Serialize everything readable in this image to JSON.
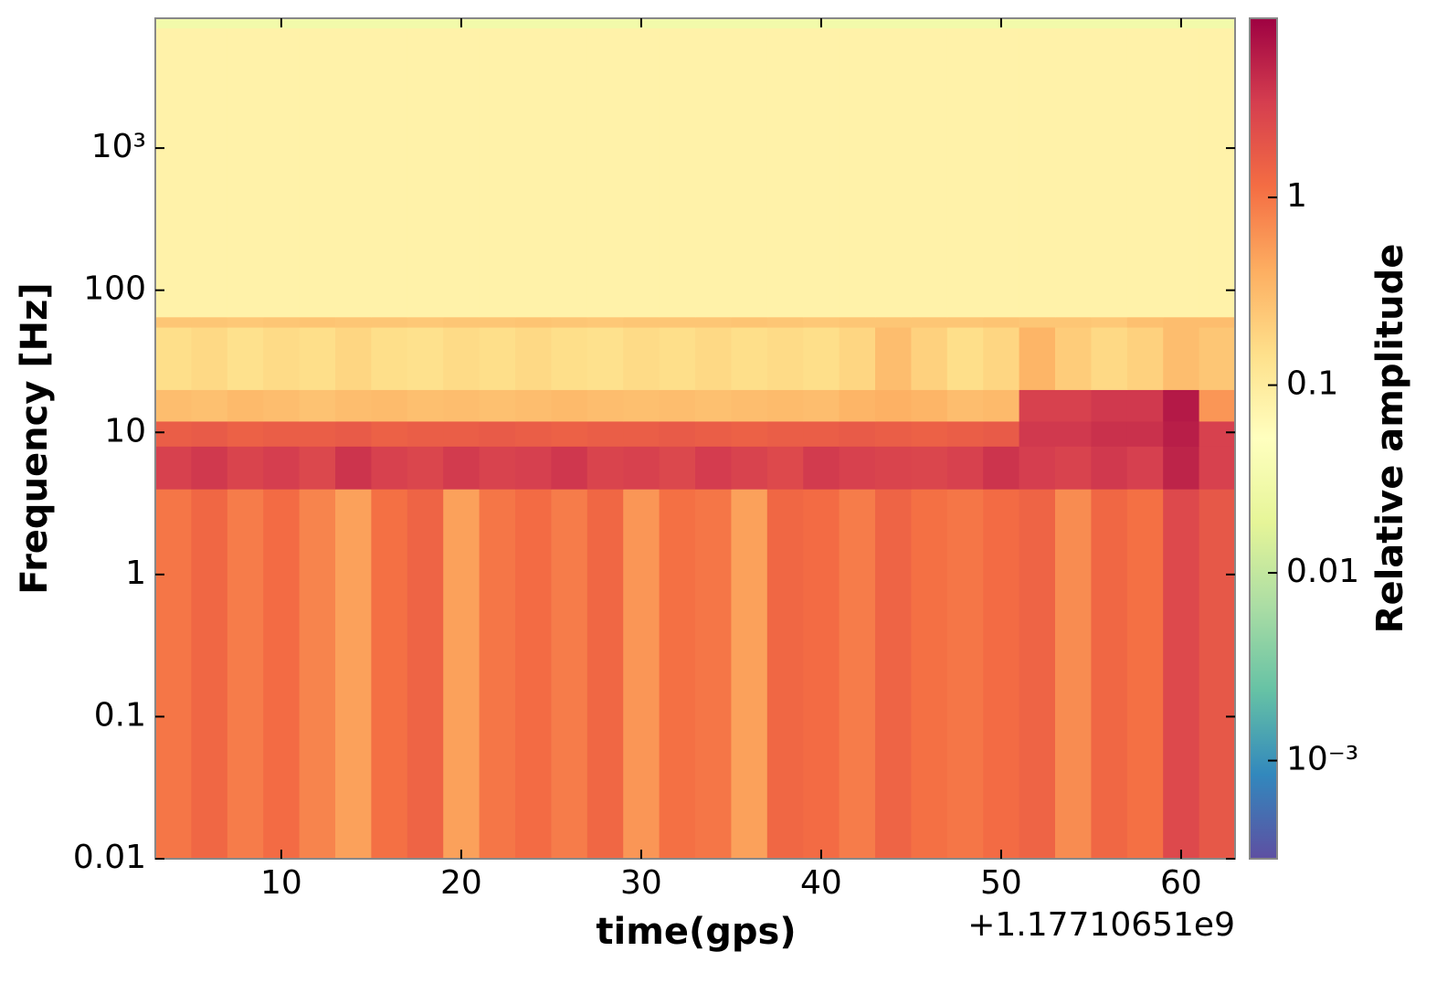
{
  "chart_data": {
    "type": "heatmap",
    "xlabel": "time(gps)",
    "ylabel": "Frequency [Hz]",
    "x_offset_label": "+1.17710651e9",
    "colorbar_label": "Relative amplitude",
    "xlim": [
      3,
      63
    ],
    "xticks": [
      10,
      20,
      30,
      40,
      50,
      60
    ],
    "ylim": [
      0.01,
      8192
    ],
    "y_log": true,
    "yticks": [
      0.01,
      0.1,
      1,
      10,
      100,
      {
        "value": 1000,
        "label": "10³"
      }
    ],
    "clim": [
      0.0003,
      9
    ],
    "c_log": true,
    "cticks": [
      {
        "value": 0.001,
        "label": "10⁻³"
      },
      0.01,
      0.1,
      1
    ],
    "colormap": [
      "#5e4fa2",
      "#3288bd",
      "#66c2a5",
      "#abdda4",
      "#e6f598",
      "#ffffbf",
      "#fee08b",
      "#fdae61",
      "#f46d43",
      "#d53e4f",
      "#9e0142"
    ],
    "x_edges": [
      3,
      5,
      7,
      9,
      11,
      13,
      15,
      17,
      19,
      21,
      23,
      25,
      27,
      29,
      31,
      33,
      35,
      37,
      39,
      41,
      43,
      45,
      47,
      49,
      51,
      53,
      55,
      57,
      59,
      61,
      63
    ],
    "y_edges": [
      0.01,
      4,
      8,
      12,
      20,
      55,
      65,
      7000,
      8192
    ],
    "z": [
      [
        1.0,
        1.3,
        0.9,
        1.2,
        0.8,
        0.5,
        1.1,
        1.4,
        0.5,
        1.0,
        1.2,
        0.9,
        1.3,
        0.6,
        1.1,
        1.0,
        0.5,
        1.3,
        1.2,
        0.9,
        1.4,
        1.1,
        1.0,
        1.2,
        1.4,
        0.7,
        1.3,
        1.1,
        2.5,
        1.8
      ],
      [
        3.0,
        3.5,
        2.8,
        3.2,
        2.6,
        3.8,
        3.0,
        2.7,
        3.4,
        2.9,
        3.1,
        3.6,
        2.8,
        3.0,
        2.6,
        3.3,
        2.9,
        2.5,
        3.4,
        3.0,
        2.8,
        2.7,
        3.0,
        3.8,
        3.2,
        2.9,
        3.5,
        3.1,
        5.0,
        3.0
      ],
      [
        1.6,
        1.7,
        1.5,
        1.6,
        1.6,
        1.7,
        1.5,
        1.6,
        1.6,
        1.7,
        1.6,
        1.5,
        1.6,
        1.6,
        1.7,
        1.6,
        1.5,
        1.6,
        1.6,
        1.7,
        1.6,
        1.5,
        1.6,
        1.7,
        3.5,
        3.5,
        4.0,
        4.0,
        5.5,
        3.0
      ],
      [
        0.3,
        0.28,
        0.32,
        0.3,
        0.27,
        0.3,
        0.31,
        0.29,
        0.3,
        0.28,
        0.3,
        0.32,
        0.3,
        0.29,
        0.3,
        0.28,
        0.3,
        0.31,
        0.3,
        0.35,
        0.38,
        0.35,
        0.3,
        0.32,
        3.0,
        3.0,
        3.5,
        3.5,
        6.0,
        0.6
      ],
      [
        0.15,
        0.17,
        0.14,
        0.16,
        0.15,
        0.18,
        0.15,
        0.14,
        0.16,
        0.15,
        0.17,
        0.15,
        0.14,
        0.16,
        0.15,
        0.17,
        0.15,
        0.16,
        0.15,
        0.18,
        0.3,
        0.2,
        0.15,
        0.18,
        0.35,
        0.22,
        0.17,
        0.2,
        0.3,
        0.25
      ],
      [
        0.25,
        0.25,
        0.24,
        0.25,
        0.26,
        0.25,
        0.25,
        0.24,
        0.25,
        0.25,
        0.26,
        0.25,
        0.24,
        0.25,
        0.25,
        0.25,
        0.26,
        0.25,
        0.24,
        0.25,
        0.25,
        0.25,
        0.25,
        0.26,
        0.25,
        0.25,
        0.24,
        0.28,
        0.3,
        0.3
      ],
      [
        0.08,
        0.08,
        0.08,
        0.08,
        0.08,
        0.08,
        0.08,
        0.08,
        0.08,
        0.08,
        0.08,
        0.08,
        0.08,
        0.08,
        0.08,
        0.08,
        0.08,
        0.08,
        0.08,
        0.08,
        0.08,
        0.08,
        0.08,
        0.08,
        0.08,
        0.08,
        0.08,
        0.08,
        0.08,
        0.08
      ],
      [
        0.03,
        0.03,
        0.03,
        0.03,
        0.03,
        0.03,
        0.03,
        0.03,
        0.03,
        0.03,
        0.03,
        0.03,
        0.03,
        0.03,
        0.03,
        0.03,
        0.03,
        0.03,
        0.03,
        0.03,
        0.03,
        0.03,
        0.03,
        0.03,
        0.03,
        0.03,
        0.03,
        0.03,
        0.03,
        0.03
      ]
    ]
  }
}
